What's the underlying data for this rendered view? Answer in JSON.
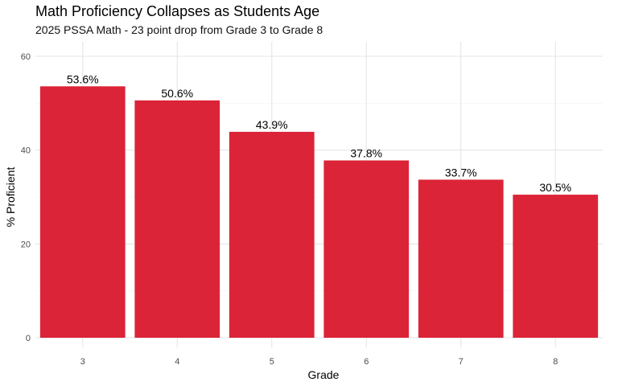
{
  "chart_data": {
    "type": "bar",
    "title": "Math Proficiency Collapses as Students Age",
    "subtitle": "2025 PSSA Math - 23 point drop from Grade 3 to Grade 8",
    "xlabel": "Grade",
    "ylabel": "% Proficient",
    "categories": [
      "3",
      "4",
      "5",
      "6",
      "7",
      "8"
    ],
    "values": [
      53.6,
      50.6,
      43.9,
      37.8,
      33.7,
      30.5
    ],
    "data_labels": [
      "53.6%",
      "50.6%",
      "43.9%",
      "37.8%",
      "33.7%",
      "30.5%"
    ],
    "ylim": [
      0,
      62
    ],
    "yticks": [
      0,
      20,
      40,
      60
    ],
    "grid": true,
    "legend": "none",
    "bar_color": "#DC2438"
  }
}
